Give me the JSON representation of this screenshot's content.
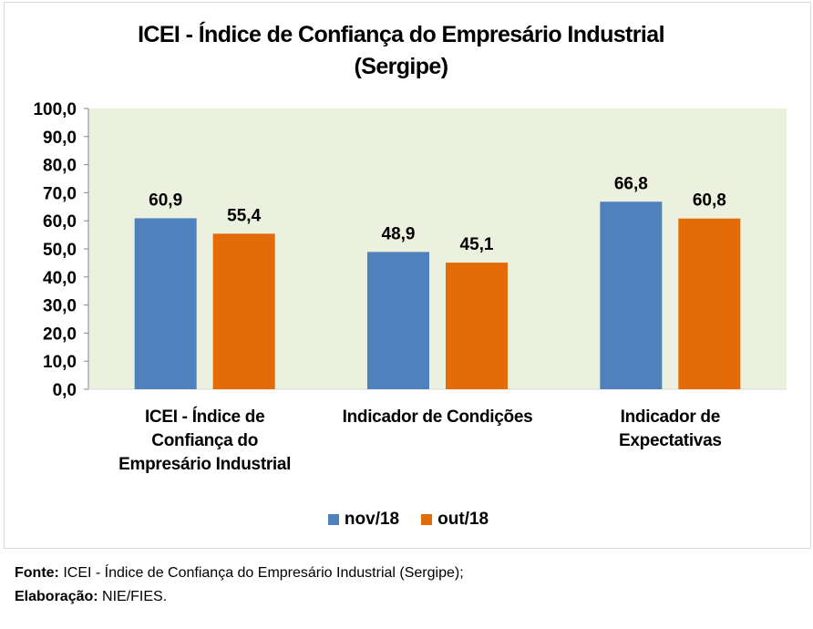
{
  "chart_data": {
    "type": "bar",
    "title": "ICEI - Índice de Confiança do Empresário Industrial",
    "subtitle": "(Sergipe)",
    "categories": [
      [
        "ICEI - Índice de",
        "Confiança do",
        "Empresário Industrial"
      ],
      [
        "Indicador de Condições"
      ],
      [
        "Indicador de",
        "Expectativas"
      ]
    ],
    "series": [
      {
        "name": "nov/18",
        "color": "#4f81bd",
        "values": [
          60.9,
          48.9,
          66.8
        ],
        "labels": [
          "60,9",
          "48,9",
          "66,8"
        ]
      },
      {
        "name": "out/18",
        "color": "#e36c09",
        "values": [
          55.4,
          45.1,
          60.8
        ],
        "labels": [
          "55,4",
          "45,1",
          "60,8"
        ]
      }
    ],
    "ylim": [
      0,
      100
    ],
    "yticks": [
      "0,0",
      "10,0",
      "20,0",
      "30,0",
      "40,0",
      "50,0",
      "60,0",
      "70,0",
      "80,0",
      "90,0",
      "100,0"
    ],
    "xlabel": "",
    "ylabel": "",
    "grid": false,
    "legend_position": "bottom",
    "plot_background": "#ebf1de"
  },
  "footnote": {
    "source_label": "Fonte:",
    "source_text": " ICEI - Índice de Confiança do Empresário Industrial (Sergipe);",
    "credit_label": "Elaboração:",
    "credit_text": " NIE/FIES."
  }
}
